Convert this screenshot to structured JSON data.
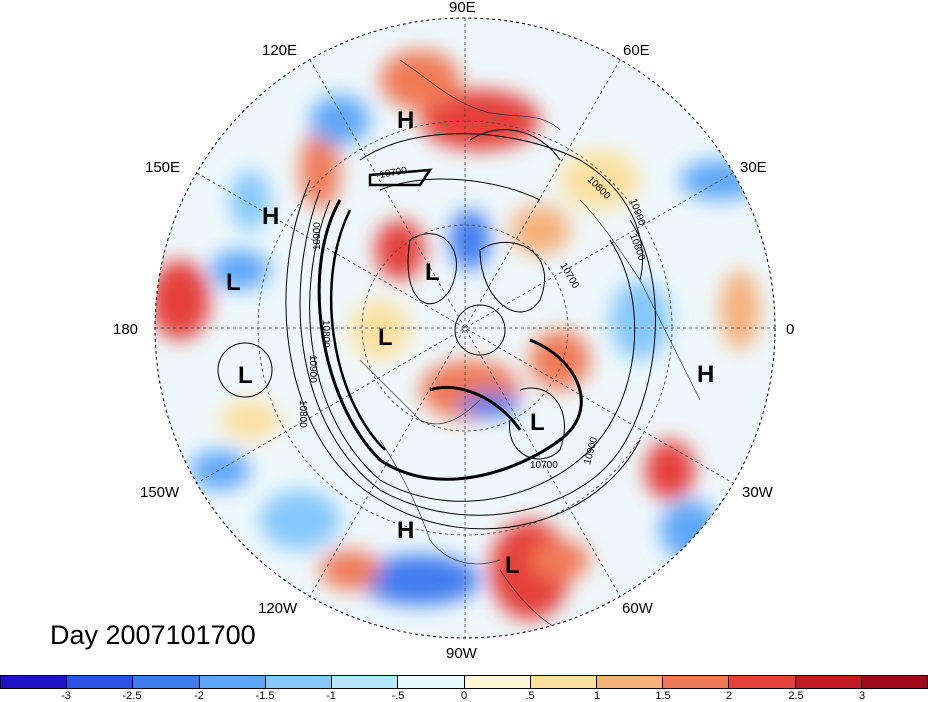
{
  "title": "Day 2007101700",
  "longitude_labels": [
    "90E",
    "60E",
    "30E",
    "0",
    "30W",
    "60W",
    "90W",
    "120W",
    "150W",
    "180",
    "150E",
    "120E"
  ],
  "pressure_centers": [
    "H",
    "H",
    "H",
    "H",
    "L",
    "L",
    "L",
    "L",
    "L",
    "L"
  ],
  "contour_labels": [
    "10700",
    "10800",
    "10900",
    "10900",
    "10800",
    "10700",
    "10800",
    "10900",
    "10800",
    "10900",
    "10700"
  ],
  "colorbar": {
    "tick_labels": [
      "-3",
      "-2.5",
      "-2",
      "-1.5",
      "-1",
      "-.5",
      "0",
      ".5",
      "1",
      "1.5",
      "2",
      "2.5",
      "3"
    ],
    "colors": [
      "#2010c8",
      "#2e50e6",
      "#3f7cf0",
      "#5ea7f7",
      "#86c8fb",
      "#b6e8fb",
      "#e6f8fc",
      "#fdf7d6",
      "#fce0a0",
      "#f6b07a",
      "#f07a57",
      "#e5413b",
      "#c41a26",
      "#9e0a1c"
    ]
  }
}
